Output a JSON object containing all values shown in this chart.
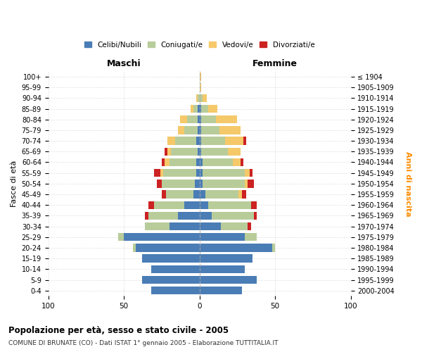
{
  "age_groups": [
    "0-4",
    "5-9",
    "10-14",
    "15-19",
    "20-24",
    "25-29",
    "30-34",
    "35-39",
    "40-44",
    "45-49",
    "50-54",
    "55-59",
    "60-64",
    "65-69",
    "70-74",
    "75-79",
    "80-84",
    "85-89",
    "90-94",
    "95-99",
    "100+"
  ],
  "birth_years": [
    "2000-2004",
    "1995-1999",
    "1990-1994",
    "1985-1989",
    "1980-1984",
    "1975-1979",
    "1970-1974",
    "1965-1969",
    "1960-1964",
    "1955-1959",
    "1950-1954",
    "1945-1949",
    "1940-1944",
    "1935-1939",
    "1930-1934",
    "1925-1929",
    "1920-1924",
    "1915-1919",
    "1910-1914",
    "1905-1909",
    "≤ 1904"
  ],
  "male_celibi": [
    32,
    38,
    32,
    38,
    42,
    50,
    20,
    14,
    10,
    4,
    3,
    2,
    2,
    1,
    2,
    1,
    1,
    1,
    0,
    0,
    0
  ],
  "male_coniugati": [
    0,
    0,
    0,
    0,
    2,
    4,
    16,
    20,
    20,
    18,
    22,
    22,
    18,
    18,
    14,
    9,
    7,
    3,
    1,
    0,
    0
  ],
  "male_vedovi": [
    0,
    0,
    0,
    0,
    0,
    0,
    0,
    0,
    0,
    0,
    0,
    2,
    3,
    2,
    5,
    4,
    5,
    2,
    1,
    0,
    0
  ],
  "male_divorziati": [
    0,
    0,
    0,
    0,
    0,
    0,
    0,
    2,
    4,
    3,
    3,
    4,
    2,
    2,
    0,
    0,
    0,
    0,
    0,
    0,
    0
  ],
  "female_celibi": [
    28,
    38,
    30,
    35,
    48,
    30,
    14,
    8,
    6,
    4,
    2,
    2,
    2,
    1,
    1,
    1,
    1,
    1,
    0,
    0,
    0
  ],
  "female_coniugati": [
    0,
    0,
    0,
    0,
    2,
    8,
    18,
    28,
    28,
    22,
    28,
    28,
    20,
    18,
    16,
    12,
    10,
    5,
    2,
    0,
    0
  ],
  "female_vedovi": [
    0,
    0,
    0,
    0,
    0,
    0,
    0,
    0,
    0,
    2,
    2,
    3,
    5,
    8,
    12,
    14,
    14,
    6,
    3,
    1,
    1
  ],
  "female_divorziati": [
    0,
    0,
    0,
    0,
    0,
    0,
    2,
    2,
    4,
    3,
    4,
    2,
    2,
    0,
    2,
    0,
    0,
    0,
    0,
    0,
    0
  ],
  "color_celibi": "#4a7db5",
  "color_coniugati": "#b8cc9a",
  "color_vedovi": "#f5c96a",
  "color_divorziati": "#cc2222",
  "title": "Popolazione per età, sesso e stato civile - 2005",
  "subtitle": "COMUNE DI BRUNATE (CO) - Dati ISTAT 1° gennaio 2005 - Elaborazione TUTTITALIA.IT",
  "xlabel_left": "Maschi",
  "xlabel_right": "Femmine",
  "ylabel_left": "Fasce di età",
  "ylabel_right": "Anni di nascita",
  "xlim": 100,
  "legend_labels": [
    "Celibi/Nubili",
    "Coniugati/e",
    "Vedovi/e",
    "Divorziati/e"
  ],
  "background_color": "#ffffff",
  "bar_height": 0.75
}
